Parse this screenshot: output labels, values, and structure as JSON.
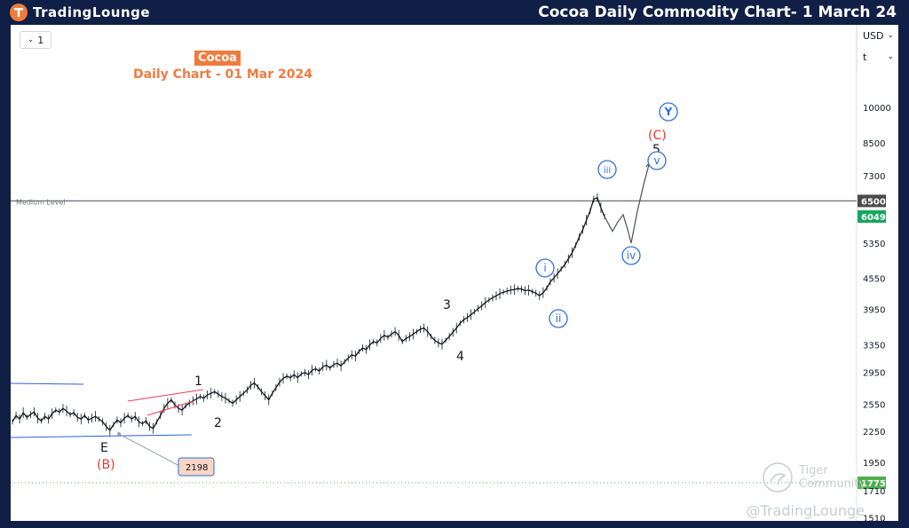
{
  "header": {
    "brand": "TradingLounge",
    "title": "Cocoa Daily Commodity Chart- 1 March 24"
  },
  "toolbar": {
    "interval": "1",
    "currency": "USD",
    "scale_mode": "t"
  },
  "chart_data": {
    "type": "line",
    "title": "Cocoa",
    "subtitle": "Daily Chart - 01 Mar 2024",
    "y_scale": "log",
    "ylim": [
      1500,
      13000
    ],
    "price_ticks": [
      "10000",
      "8500",
      "7300",
      "6500",
      "6049",
      "5350",
      "4550",
      "3950",
      "3350",
      "2950",
      "2550",
      "2250",
      "1950",
      "1775",
      "1710",
      "1510"
    ],
    "tick_values": [
      10000,
      8500,
      7300,
      6500,
      6049,
      5350,
      4550,
      3950,
      3350,
      2950,
      2550,
      2250,
      1950,
      1775,
      1710,
      1510
    ],
    "highlighted": [
      {
        "label": "6500",
        "value": 6500,
        "color": "#4a4a4a"
      },
      {
        "label": "6049",
        "value": 6049,
        "color": "#17a55f"
      },
      {
        "label": "1775",
        "value": 1775,
        "color": "#4caf50"
      }
    ],
    "series": [
      {
        "values": [
          2350,
          2420,
          2380,
          2450,
          2400,
          2430,
          2460,
          2390,
          2360,
          2410,
          2380,
          2440,
          2480,
          2460,
          2500,
          2470,
          2430,
          2450,
          2400,
          2380,
          2420,
          2370,
          2390,
          2410,
          2380,
          2350,
          2300,
          2260,
          2320,
          2370,
          2340,
          2390,
          2420,
          2380,
          2410,
          2350,
          2330,
          2360,
          2300,
          2280,
          2350,
          2420,
          2500,
          2560,
          2600,
          2540,
          2500,
          2480,
          2530,
          2560,
          2590,
          2610,
          2640,
          2620,
          2660,
          2680,
          2700,
          2670,
          2640,
          2620,
          2590,
          2560,
          2600,
          2640,
          2680,
          2720,
          2780,
          2810,
          2760,
          2700,
          2650,
          2600,
          2680,
          2750,
          2820,
          2870,
          2900,
          2880,
          2920,
          2880,
          2930,
          2950,
          2920,
          2980,
          3000,
          2970,
          3030,
          3050,
          3010,
          3060,
          3080,
          3040,
          3100,
          3150,
          3200,
          3180,
          3250,
          3300,
          3280,
          3350,
          3400,
          3380,
          3450,
          3500,
          3470,
          3520,
          3560,
          3500,
          3400,
          3450,
          3480,
          3520,
          3560,
          3600,
          3620,
          3560,
          3480,
          3420,
          3380,
          3360,
          3420,
          3480,
          3550,
          3620,
          3700,
          3760,
          3800,
          3850,
          3900,
          3960,
          4010,
          4070,
          4120,
          4160,
          4200,
          4240,
          4270,
          4290,
          4310,
          4320,
          4340,
          4330,
          4300,
          4310,
          4280,
          4250,
          4200,
          4260,
          4350,
          4480,
          4560,
          4650,
          4750,
          4850,
          4980,
          5120,
          5300,
          5500,
          5700,
          5950,
          6200,
          6550,
          6600,
          6300,
          6050
        ],
        "color": "#131722"
      }
    ],
    "projection": {
      "values": [
        6050,
        5650,
        5900,
        6100,
        5700,
        5350,
        6200,
        7000,
        7800
      ],
      "color": "#555b66"
    },
    "lines": [
      {
        "name": "Medium Level",
        "value": 6500,
        "color": "#6b6f78"
      },
      {
        "name": "support",
        "value": 1775,
        "color": "#4caf50",
        "style": "dotted"
      }
    ],
    "wave_labels": [
      {
        "text": "1",
        "style": "plain"
      },
      {
        "text": "2",
        "style": "plain"
      },
      {
        "text": "3",
        "style": "plain"
      },
      {
        "text": "4",
        "style": "plain"
      },
      {
        "text": "5",
        "style": "plain"
      },
      {
        "text": "E",
        "style": "plain"
      },
      {
        "text": "(B)",
        "style": "red"
      },
      {
        "text": "(C)",
        "style": "red"
      },
      {
        "text": "i",
        "style": "circle"
      },
      {
        "text": "ii",
        "style": "circle"
      },
      {
        "text": "iii",
        "style": "circle"
      },
      {
        "text": "iv",
        "style": "circle"
      },
      {
        "text": "v",
        "style": "circle"
      },
      {
        "text": "Y",
        "style": "circle-dark"
      }
    ],
    "annotations": [
      {
        "text": "2198",
        "kind": "price-callout"
      },
      {
        "text": "Medium Level",
        "kind": "line-label"
      }
    ]
  },
  "watermark": "@TradingLounge",
  "tiger": "Tiger Community",
  "colors": {
    "frame": "#0f1f45",
    "accent": "#f07b3f",
    "circle": "#2a6fdb",
    "red": "#e53935",
    "wedge": "#e0405e",
    "channel": "#2f5fd8"
  }
}
